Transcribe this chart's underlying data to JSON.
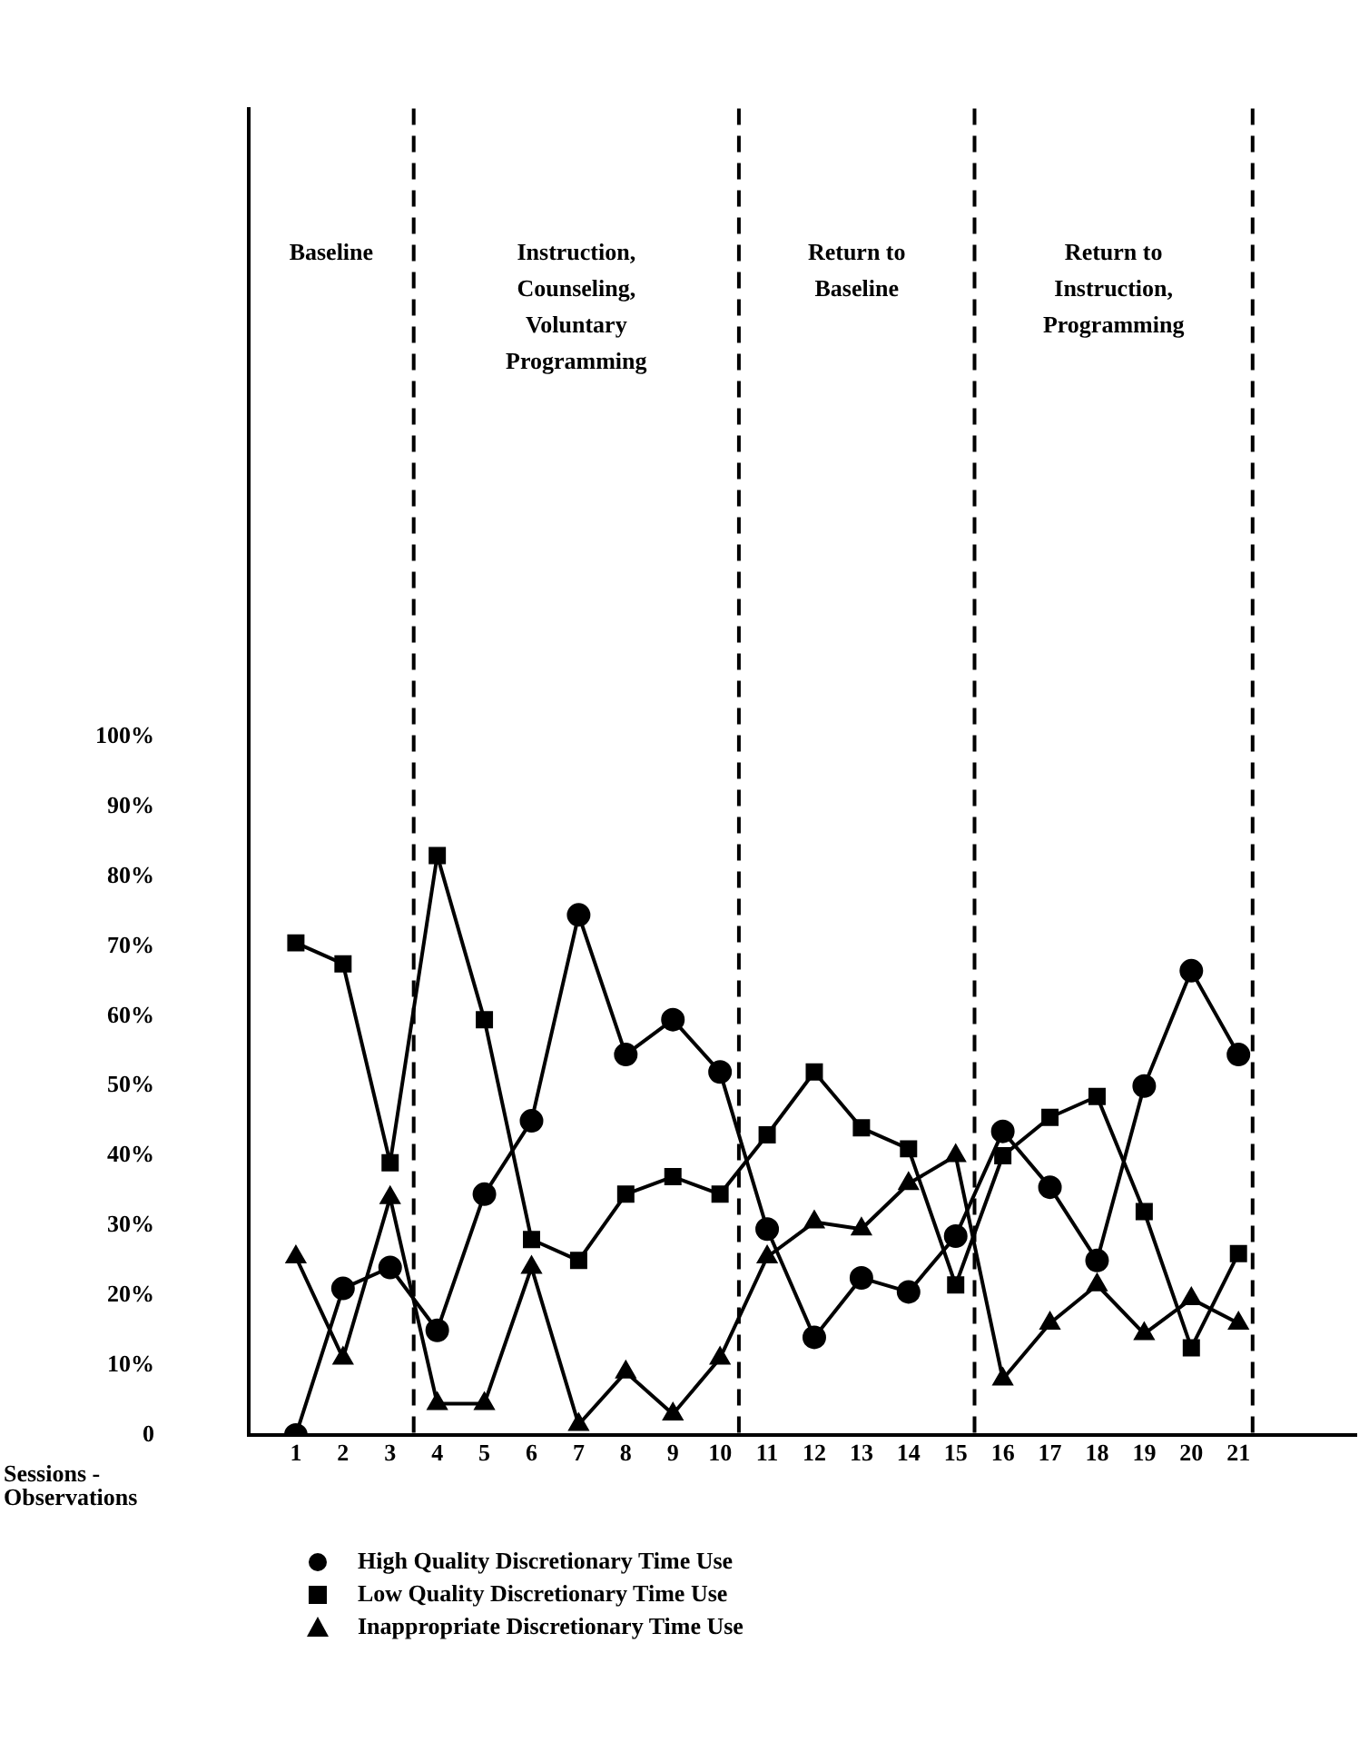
{
  "chart_data": {
    "type": "line",
    "xlabel": "Sessions -\nObservations",
    "x": [
      1,
      2,
      3,
      4,
      5,
      6,
      7,
      8,
      9,
      10,
      11,
      12,
      13,
      14,
      15,
      16,
      17,
      18,
      19,
      20,
      21
    ],
    "xlim": [
      0,
      23.5
    ],
    "xticks": [
      1,
      2,
      3,
      4,
      5,
      6,
      7,
      8,
      9,
      10,
      11,
      12,
      13,
      14,
      15,
      16,
      17,
      18,
      19,
      20,
      21
    ],
    "ylim": [
      0,
      190
    ],
    "yticks": [
      {
        "value": 0,
        "label": "0"
      },
      {
        "value": 10,
        "label": "10%"
      },
      {
        "value": 20,
        "label": "20%"
      },
      {
        "value": 30,
        "label": "30%"
      },
      {
        "value": 40,
        "label": "40%"
      },
      {
        "value": 50,
        "label": "50%"
      },
      {
        "value": 60,
        "label": "60%"
      },
      {
        "value": 70,
        "label": "70%"
      },
      {
        "value": 80,
        "label": "80%"
      },
      {
        "value": 90,
        "label": "90%"
      },
      {
        "value": 100,
        "label": "100%"
      }
    ],
    "series": [
      {
        "name": "High Quality Discretionary Time Use",
        "color": "#000000",
        "marker": "circle",
        "values": [
          0,
          21,
          24,
          15,
          34.5,
          45,
          74.5,
          54.5,
          59.5,
          52,
          29.5,
          14,
          22.5,
          20.5,
          28.5,
          43.5,
          35.5,
          25,
          50,
          66.5,
          54.5
        ]
      },
      {
        "name": "Low Quality Discretionary Time Use",
        "color": "#000000",
        "marker": "square",
        "values": [
          70.5,
          67.5,
          39,
          83,
          59.5,
          28,
          25,
          34.5,
          37,
          34.5,
          43,
          52,
          44,
          41,
          21.5,
          40,
          45.5,
          48.5,
          32,
          12.5,
          26
        ]
      },
      {
        "name": "Inappropriate Discretionary Time Use",
        "color": "#000000",
        "marker": "triangle",
        "values": [
          25.5,
          11,
          34,
          4.5,
          4.5,
          24,
          1.5,
          9,
          3,
          11,
          25.5,
          30.5,
          29.5,
          36,
          40,
          8,
          16,
          21.5,
          14.5,
          19.5,
          16
        ]
      }
    ],
    "ref_lines": [
      {
        "axis": "x",
        "value": 3.5,
        "line_style": "dashed"
      },
      {
        "axis": "x",
        "value": 10.4,
        "line_style": "dashed"
      },
      {
        "axis": "x",
        "value": 15.4,
        "line_style": "dashed"
      },
      {
        "axis": "x",
        "value": 21.3,
        "line_style": "dashed"
      }
    ],
    "annotations": [
      "Baseline",
      "Instruction, Counseling, Voluntary Programming",
      "Return to Baseline",
      "Return to Instruction, Programming"
    ],
    "legend": "bottom",
    "grid": false,
    "line_style": "solid"
  }
}
